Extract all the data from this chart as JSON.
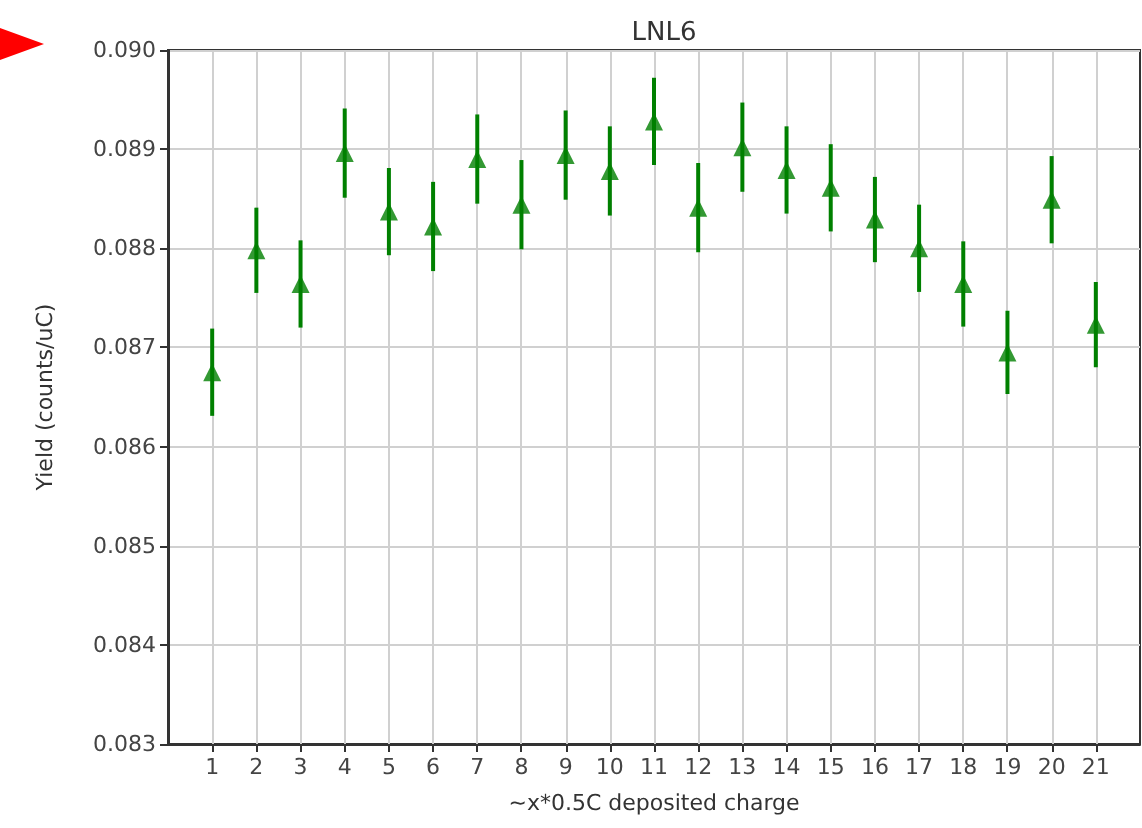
{
  "chart_data": {
    "type": "scatter",
    "title": "LNL6",
    "xlabel": "~x*0.5C deposited charge",
    "ylabel": "Yield (counts/uC)",
    "x": [
      1,
      2,
      3,
      4,
      5,
      6,
      7,
      8,
      9,
      10,
      11,
      12,
      13,
      14,
      15,
      16,
      17,
      18,
      19,
      20,
      21
    ],
    "series": [
      {
        "color": "#008000",
        "values": [
          0.08675,
          0.08798,
          0.08764,
          0.08896,
          0.08837,
          0.08822,
          0.0889,
          0.08844,
          0.08894,
          0.08878,
          0.08928,
          0.08841,
          0.08902,
          0.08879,
          0.08861,
          0.08829,
          0.088,
          0.08764,
          0.08695,
          0.08849,
          0.08723
        ],
        "errors": [
          0.00044,
          0.00043,
          0.00044,
          0.00045,
          0.00044,
          0.00045,
          0.00045,
          0.00045,
          0.00045,
          0.00045,
          0.00044,
          0.00045,
          0.00045,
          0.00044,
          0.00044,
          0.00043,
          0.00044,
          0.00043,
          0.00042,
          0.00044,
          0.00043
        ]
      }
    ],
    "xlim": [
      0,
      22
    ],
    "xticks": [
      1,
      2,
      3,
      4,
      5,
      6,
      7,
      8,
      9,
      10,
      11,
      12,
      13,
      14,
      15,
      16,
      17,
      18,
      19,
      20,
      21
    ],
    "ylim": [
      0.083,
      0.09
    ],
    "yticks": [
      0.083,
      0.084,
      0.085,
      0.086,
      0.087,
      0.088,
      0.089,
      {
        "value": 0.09,
        "label": "0.090"
      }
    ],
    "grid": true,
    "marker": "triangle"
  }
}
